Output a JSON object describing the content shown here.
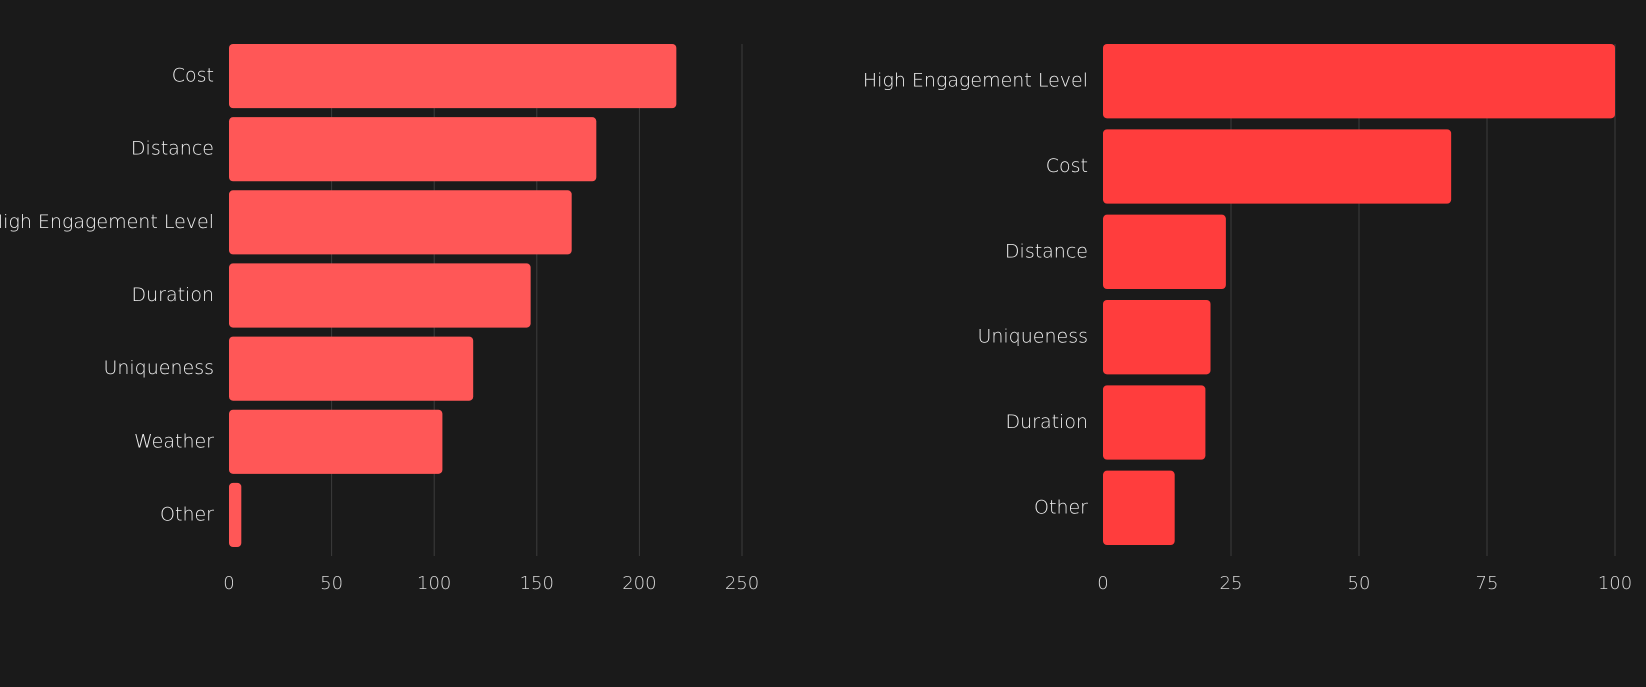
{
  "chart_data": [
    {
      "type": "bar",
      "orientation": "horizontal",
      "categories": [
        "Cost",
        "Distance",
        "High Engagement Level",
        "Duration",
        "Uniqueness",
        "Weather",
        "Other"
      ],
      "values": [
        218,
        179,
        167,
        147,
        119,
        104,
        6
      ],
      "xlim": [
        0,
        250
      ],
      "xticks": [
        0,
        50,
        100,
        150,
        200,
        250
      ],
      "grid": true,
      "color": "#ff5757"
    },
    {
      "type": "bar",
      "orientation": "horizontal",
      "categories": [
        "High Engagement Level",
        "Cost",
        "Distance",
        "Uniqueness",
        "Duration",
        "Other"
      ],
      "values": [
        100,
        68,
        24,
        21,
        20,
        14
      ],
      "xlim": [
        0,
        100
      ],
      "xticks": [
        0,
        25,
        50,
        75,
        100
      ],
      "grid": true,
      "color": "#ff3d3d"
    }
  ]
}
